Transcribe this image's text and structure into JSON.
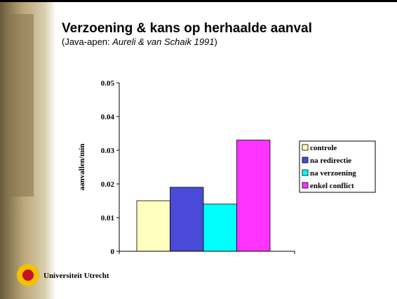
{
  "slide": {
    "title": "Verzoening & kans op herhaalde aanval",
    "subtitle_parts": [
      "(Java-apen: ",
      "Aureli & van Schaik 1991",
      ")"
    ],
    "logo_text": "Universiteit Utrecht"
  },
  "chart_data": {
    "type": "bar",
    "y_label": "aanvallen/min",
    "categories": [
      null
    ],
    "series": [
      {
        "name": "controle",
        "color": "#ffffc0",
        "values": [
          0.015
        ]
      },
      {
        "name": "na redirectie",
        "color": "#4a4ad8",
        "values": [
          0.019
        ]
      },
      {
        "name": "na verzoening",
        "color": "#00ffff",
        "values": [
          0.014
        ]
      },
      {
        "name": "enkel conflict",
        "color": "#ff33ff",
        "values": [
          0.033
        ]
      }
    ],
    "ylim": [
      0,
      0.05
    ],
    "yticks": [
      0,
      0.01,
      0.02,
      0.03,
      0.04,
      0.05
    ],
    "grid": false,
    "legend": "right"
  }
}
